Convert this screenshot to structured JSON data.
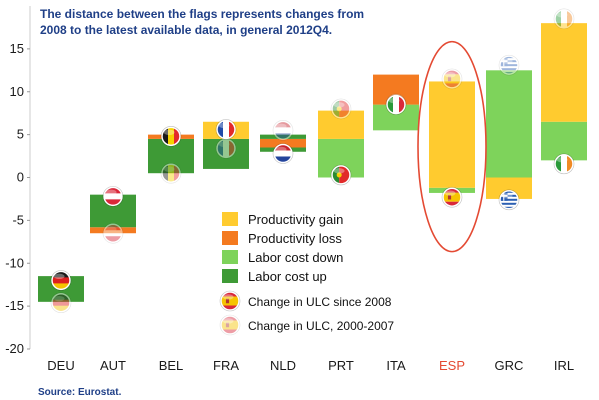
{
  "note": {
    "line1": "The distance between the flags represents changes from",
    "line2": "2008 to the latest available data, in general 2012Q4."
  },
  "source": "Source: Eurostat.",
  "colors": {
    "productivity_gain": "#FFCB2F",
    "productivity_loss": "#F47A20",
    "labor_cost_down": "#7ED35B",
    "labor_cost_up": "#3E9A36",
    "highlight_ellipse": "#E44A33",
    "highlight_label": "#E44A33",
    "axis_text": "#1a1a1a",
    "note_text": "#1f3f87"
  },
  "legend": [
    {
      "label": "Productivity gain",
      "color_key": "productivity_gain",
      "kind": "box"
    },
    {
      "label": "Productivity loss",
      "color_key": "productivity_loss",
      "kind": "box"
    },
    {
      "label": "Labor cost down",
      "color_key": "labor_cost_down",
      "kind": "box"
    },
    {
      "label": "Labor cost up",
      "color_key": "labor_cost_up",
      "kind": "box"
    },
    {
      "label": "Change in ULC since 2008",
      "kind": "flag-strong",
      "icon": "spain-flag-icon"
    },
    {
      "label": "Change in ULC, 2000-2007",
      "kind": "flag-faded",
      "icon": "spain-flag-faded-icon"
    }
  ],
  "chart_data": {
    "type": "bar",
    "ylim": [
      -20,
      20
    ],
    "yticks": [
      -20,
      -15,
      -10,
      -5,
      0,
      5,
      10,
      15
    ],
    "highlight_category": "ESP",
    "categories": [
      "DEU",
      "AUT",
      "BEL",
      "FRA",
      "NLD",
      "PRT",
      "ITA",
      "ESP",
      "GRC",
      "IRL"
    ],
    "segments": [
      [
        {
          "from": -14.5,
          "to": -11.5,
          "color_key": "labor_cost_up"
        }
      ],
      [
        {
          "from": -6.5,
          "to": -5.8,
          "color_key": "productivity_loss"
        },
        {
          "from": -5.8,
          "to": -2.0,
          "color_key": "labor_cost_up"
        }
      ],
      [
        {
          "from": 0.5,
          "to": 4.5,
          "color_key": "labor_cost_up"
        },
        {
          "from": 4.5,
          "to": 5.0,
          "color_key": "productivity_loss"
        }
      ],
      [
        {
          "from": 1.0,
          "to": 4.5,
          "color_key": "labor_cost_up"
        },
        {
          "from": 4.5,
          "to": 6.5,
          "color_key": "productivity_gain"
        }
      ],
      [
        {
          "from": 3.0,
          "to": 3.5,
          "color_key": "labor_cost_up"
        },
        {
          "from": 3.5,
          "to": 4.5,
          "color_key": "productivity_loss"
        },
        {
          "from": 4.5,
          "to": 5.0,
          "color_key": "labor_cost_up"
        }
      ],
      [
        {
          "from": 0.0,
          "to": 4.5,
          "color_key": "labor_cost_down"
        },
        {
          "from": 4.5,
          "to": 7.8,
          "color_key": "productivity_gain"
        }
      ],
      [
        {
          "from": 5.5,
          "to": 8.5,
          "color_key": "labor_cost_down"
        },
        {
          "from": 8.5,
          "to": 12.0,
          "color_key": "productivity_loss"
        }
      ],
      [
        {
          "from": -1.8,
          "to": -1.2,
          "color_key": "labor_cost_down"
        },
        {
          "from": -1.2,
          "to": 11.2,
          "color_key": "productivity_gain"
        }
      ],
      [
        {
          "from": -2.5,
          "to": 0.0,
          "color_key": "productivity_gain"
        },
        {
          "from": 0.0,
          "to": 12.5,
          "color_key": "labor_cost_down"
        }
      ],
      [
        {
          "from": 2.0,
          "to": 6.5,
          "color_key": "labor_cost_down"
        },
        {
          "from": 6.5,
          "to": 18.0,
          "color_key": "productivity_gain"
        }
      ]
    ],
    "flags_since_2008": [
      {
        "value": -12.0,
        "flag": "germany-flag-icon"
      },
      {
        "value": -2.2,
        "flag": "austria-flag-icon"
      },
      {
        "value": 4.8,
        "flag": "belgium-flag-icon"
      },
      {
        "value": 5.6,
        "flag": "france-flag-icon"
      },
      {
        "value": 2.8,
        "flag": "netherlands-flag-icon"
      },
      {
        "value": 0.3,
        "flag": "portugal-flag-icon"
      },
      {
        "value": 8.5,
        "flag": "italy-flag-icon"
      },
      {
        "value": -2.3,
        "flag": "spain-flag-icon"
      },
      {
        "value": -2.6,
        "flag": "greece-flag-icon"
      },
      {
        "value": 1.6,
        "flag": "ireland-flag-icon"
      }
    ],
    "flags_2000_2007": [
      {
        "value": -14.6,
        "flag": "germany-flag-icon"
      },
      {
        "value": -6.5,
        "flag": "austria-flag-icon"
      },
      {
        "value": 0.5,
        "flag": "belgium-flag-icon"
      },
      {
        "value": 3.4,
        "flag": "france-flag-icon"
      },
      {
        "value": 5.5,
        "flag": "netherlands-flag-icon"
      },
      {
        "value": 8.0,
        "flag": "portugal-flag-icon"
      },
      {
        "value": 8.6,
        "flag": "italy-flag-icon"
      },
      {
        "value": 11.5,
        "flag": "spain-flag-icon"
      },
      {
        "value": 13.1,
        "flag": "greece-flag-icon"
      },
      {
        "value": 18.5,
        "flag": "ireland-flag-icon"
      }
    ]
  }
}
